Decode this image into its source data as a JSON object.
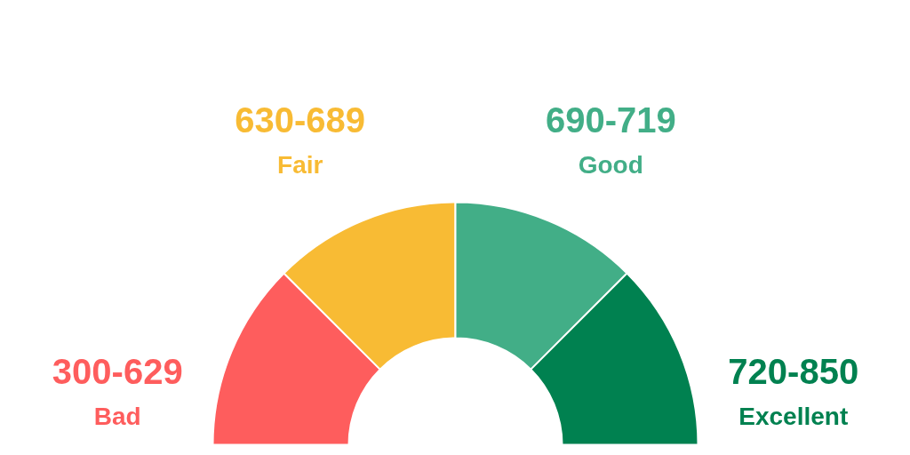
{
  "chart_data": {
    "type": "donut",
    "categories": [
      "Bad",
      "Fair",
      "Good",
      "Excellent"
    ],
    "values": [
      25,
      25,
      25,
      25
    ],
    "colors": [
      "#fe5d5d",
      "#f8bb34",
      "#42ae87",
      "#008150"
    ],
    "value_labels": [
      "300-629",
      "630-689",
      "690-719",
      "720-850"
    ]
  }
}
